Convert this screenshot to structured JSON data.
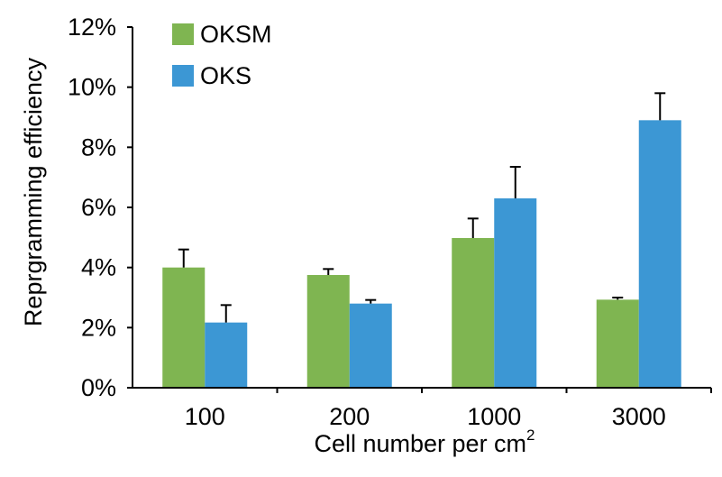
{
  "chart_data": {
    "type": "bar",
    "categories": [
      "100",
      "200",
      "1000",
      "3000"
    ],
    "series": [
      {
        "name": "OKSM",
        "color": "#7fb551",
        "values": [
          4.0,
          3.75,
          4.98,
          2.93
        ],
        "errors": [
          0.6,
          0.2,
          0.65,
          0.07
        ]
      },
      {
        "name": "OKS",
        "color": "#3c97d4",
        "values": [
          2.17,
          2.8,
          6.3,
          8.9
        ],
        "errors": [
          0.58,
          0.12,
          1.05,
          0.9
        ]
      }
    ],
    "xlabel_main": "Cell number per cm",
    "xlabel_sup": "2",
    "ylabel": "Reprgramming efficiency",
    "ylim": [
      0,
      12
    ],
    "yticks": [
      0,
      2,
      4,
      6,
      8,
      10,
      12
    ],
    "ytick_labels": [
      "0%",
      "2%",
      "4%",
      "6%",
      "8%",
      "10%",
      "12%"
    ],
    "grid": false,
    "legend": "top-left"
  }
}
